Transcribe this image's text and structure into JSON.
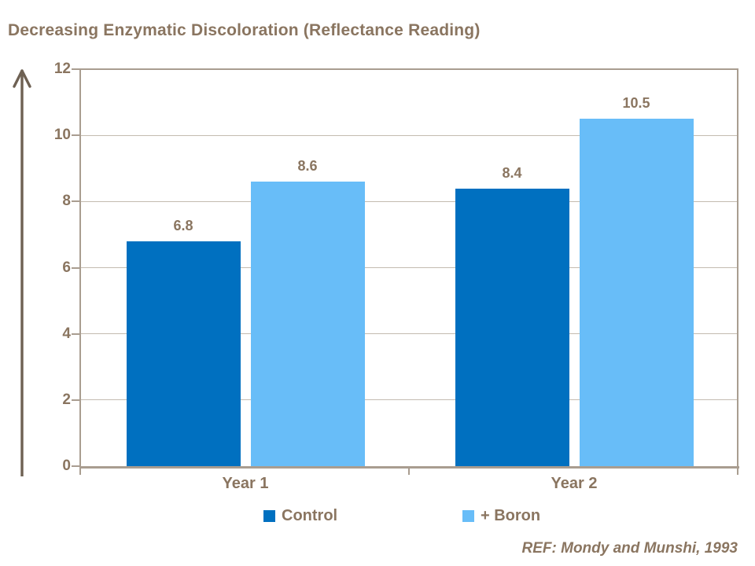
{
  "slide": {
    "title": "Decreasing Enzymatic Discoloration (Reflectance Reading)",
    "reference": "REF: Mondy and Munshi, 1993"
  },
  "colors": {
    "title_text": "#8a7560",
    "label_text": "#8a7560",
    "axis_line": "#a99d90",
    "gridline": "#c3bbb0",
    "arrow": "#6e6153",
    "control_bar": "#0070c0",
    "boron_bar": "#68bdf8",
    "background": "#ffffff"
  },
  "chart_data": {
    "type": "bar",
    "title": "Decreasing Enzymatic Discoloration (Reflectance Reading)",
    "categories": [
      "Year 1",
      "Year 2"
    ],
    "series": [
      {
        "name": "Control",
        "color": "#0070c0",
        "values": [
          6.8,
          8.4
        ],
        "value_labels": [
          "6.8",
          "8.4"
        ]
      },
      {
        "name": "+ Boron",
        "color": "#68bdf8",
        "values": [
          8.6,
          10.5
        ],
        "value_labels": [
          "8.6",
          "10.5"
        ]
      }
    ],
    "xlabel": "",
    "ylabel": "",
    "ylim": [
      0,
      12
    ],
    "yticks": [
      0,
      2,
      4,
      6,
      8,
      10,
      12
    ],
    "grid": true,
    "legend_position": "bottom",
    "y_axis_arrow": "up",
    "annotation": "REF: Mondy and Munshi, 1993"
  }
}
